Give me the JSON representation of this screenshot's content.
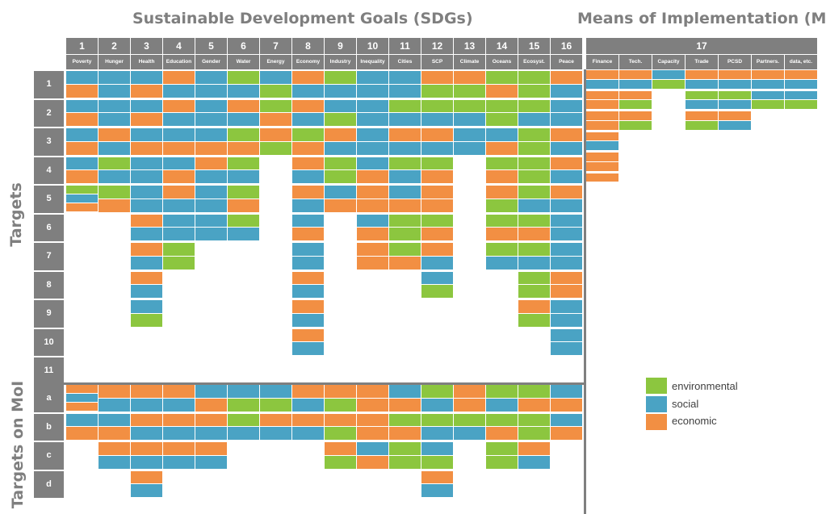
{
  "titles": {
    "sdgs": "Sustainable Development Goals (SDGs)",
    "moi": "Means of Implementation (MoI)"
  },
  "side_labels": {
    "targets": "Targets",
    "targets_moi": "Targets on MoI"
  },
  "colors": {
    "G": "#8cc63f",
    "B": "#4aa3c4",
    "O": "#f28f43",
    "header": "#7f7f7f"
  },
  "goals": [
    {
      "num": "1",
      "name": "Poverty"
    },
    {
      "num": "2",
      "name": "Hunger"
    },
    {
      "num": "3",
      "name": "Health"
    },
    {
      "num": "4",
      "name": "Education"
    },
    {
      "num": "5",
      "name": "Gender"
    },
    {
      "num": "6",
      "name": "Water"
    },
    {
      "num": "7",
      "name": "Energy"
    },
    {
      "num": "8",
      "name": "Economy"
    },
    {
      "num": "9",
      "name": "Industry"
    },
    {
      "num": "10",
      "name": "Inequality"
    },
    {
      "num": "11",
      "name": "Cities"
    },
    {
      "num": "12",
      "name": "SCP"
    },
    {
      "num": "13",
      "name": "Climate"
    },
    {
      "num": "14",
      "name": "Oceans"
    },
    {
      "num": "15",
      "name": "Ecosyst."
    },
    {
      "num": "16",
      "name": "Peace"
    }
  ],
  "goal17": {
    "num": "17",
    "subs": [
      "Finance",
      "Tech.",
      "Capacity",
      "Trade",
      "PCSD",
      "Partners.",
      "data, etc."
    ]
  },
  "target_rows": [
    "1",
    "2",
    "3",
    "4",
    "5",
    "6",
    "7",
    "8",
    "9",
    "10",
    "11"
  ],
  "moi_rows": [
    "a",
    "b",
    "c",
    "d"
  ],
  "legend": [
    {
      "label": "environmental",
      "color": "G"
    },
    {
      "label": "social",
      "color": "B"
    },
    {
      "label": "economic",
      "color": "O"
    }
  ],
  "chart_data": {
    "type": "heatmap",
    "note_codes": "G=environmental, B=social, O=economic",
    "sdg_columns": [
      {
        "goal": "1",
        "rows": {
          "1": "BO",
          "2": "BO",
          "3": "BO",
          "4": "BO",
          "5": "GBO",
          "a": "OBO",
          "b": "BO"
        }
      },
      {
        "goal": "2",
        "rows": {
          "1": "BB",
          "2": "BB",
          "3": "OB",
          "4": "GB",
          "5": "GO",
          "a": "OB",
          "b": "BO",
          "c": "OB"
        }
      },
      {
        "goal": "3",
        "rows": {
          "1": "BO",
          "2": "BO",
          "3": "BO",
          "4": "BB",
          "5": "BB",
          "6": "OB",
          "7": "OB",
          "8": "OB",
          "9": "BG",
          "a": "OB",
          "b": "OB",
          "c": "OB",
          "d": "OB"
        }
      },
      {
        "goal": "4",
        "rows": {
          "1": "OB",
          "2": "OB",
          "3": "BO",
          "4": "BO",
          "5": "OB",
          "6": "BB",
          "7": "GG",
          "a": "OB",
          "b": "OB",
          "c": "OB"
        }
      },
      {
        "goal": "5",
        "rows": {
          "1": "BB",
          "2": "BB",
          "3": "BO",
          "4": "OB",
          "5": "BB",
          "6": "BB",
          "a": "BO",
          "b": "OB",
          "c": "OB"
        }
      },
      {
        "goal": "6",
        "rows": {
          "1": "GB",
          "2": "OB",
          "3": "GO",
          "4": "GB",
          "5": "GO",
          "6": "GB",
          "a": "BG",
          "b": "GB"
        }
      },
      {
        "goal": "7",
        "rows": {
          "1": "BG",
          "2": "GO",
          "3": "OG",
          "a": "BG",
          "b": "OB"
        }
      },
      {
        "goal": "8",
        "rows": {
          "1": "OB",
          "2": "OB",
          "3": "GO",
          "4": "OB",
          "5": "OB",
          "6": "BO",
          "7": "BB",
          "8": "OB",
          "9": "OB",
          "10": "OB",
          "a": "OB",
          "b": "OB"
        }
      },
      {
        "goal": "9",
        "rows": {
          "1": "GB",
          "2": "BG",
          "3": "OB",
          "4": "GG",
          "5": "BO",
          "a": "OG",
          "b": "OG",
          "c": "OG"
        }
      },
      {
        "goal": "10",
        "rows": {
          "1": "BB",
          "2": "BB",
          "3": "BB",
          "4": "BO",
          "5": "OO",
          "6": "BO",
          "7": "OO",
          "a": "OO",
          "b": "OO",
          "c": "BO"
        }
      },
      {
        "goal": "11",
        "rows": {
          "1": "BB",
          "2": "GB",
          "3": "OB",
          "4": "GB",
          "5": "BO",
          "6": "GG",
          "7": "GO",
          "a": "BO",
          "b": "GO",
          "c": "GG"
        }
      },
      {
        "goal": "12",
        "rows": {
          "1": "OG",
          "2": "GB",
          "3": "OB",
          "4": "GO",
          "5": "OO",
          "6": "GO",
          "7": "OB",
          "8": "BG",
          "a": "GB",
          "b": "GB",
          "c": "BG",
          "d": "OB"
        }
      },
      {
        "goal": "13",
        "rows": {
          "1": "OG",
          "2": "GB",
          "3": "BB",
          "a": "OO",
          "b": "GB"
        }
      },
      {
        "goal": "14",
        "rows": {
          "1": "GO",
          "2": "GG",
          "3": "BO",
          "4": "GO",
          "5": "OG",
          "6": "GO",
          "7": "GB",
          "a": "GB",
          "b": "GO",
          "c": "GG"
        }
      },
      {
        "goal": "15",
        "rows": {
          "1": "GG",
          "2": "GB",
          "3": "GG",
          "4": "GG",
          "5": "GB",
          "6": "GO",
          "7": "GB",
          "8": "GG",
          "9": "OG",
          "a": "GO",
          "b": "GG",
          "c": "OB"
        }
      },
      {
        "goal": "16",
        "rows": {
          "1": "OB",
          "2": "BB",
          "3": "OB",
          "4": "OB",
          "5": "OB",
          "6": "BB",
          "7": "BB",
          "8": "OO",
          "9": "BB",
          "10": "BB",
          "a": "BO",
          "b": "BO"
        }
      }
    ],
    "moi_columns": [
      {
        "goal": "Finance",
        "rows": [
          "OB",
          "OO",
          "OO",
          "OB",
          "OO",
          "O"
        ]
      },
      {
        "goal": "Tech.",
        "rows": [
          "OB",
          "OG",
          "OG"
        ]
      },
      {
        "goal": "Capacity",
        "rows": [
          "BG"
        ]
      },
      {
        "goal": "Trade",
        "rows": [
          "OB",
          "GB",
          "OG"
        ]
      },
      {
        "goal": "PCSD",
        "rows": [
          "OB",
          "GB",
          "OB"
        ]
      },
      {
        "goal": "Partners.",
        "rows": [
          "OB",
          "BG"
        ]
      },
      {
        "goal": "data, etc.",
        "rows": [
          "OB",
          "BG"
        ]
      }
    ]
  }
}
